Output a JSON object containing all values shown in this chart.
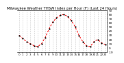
{
  "title": "Milwaukee Weather THSW Index per Hour (F) (Last 24 Hours)",
  "hours": [
    0,
    1,
    2,
    3,
    4,
    5,
    6,
    7,
    8,
    9,
    10,
    11,
    12,
    13,
    14,
    15,
    16,
    17,
    18,
    19,
    20,
    21,
    22,
    23
  ],
  "values": [
    30,
    22,
    15,
    10,
    5,
    3,
    10,
    25,
    45,
    62,
    72,
    78,
    80,
    75,
    65,
    50,
    30,
    15,
    5,
    3,
    15,
    20,
    12,
    8
  ],
  "line_color": "#ff0000",
  "marker_color": "#000000",
  "bg_color": "#ffffff",
  "grid_color": "#808080",
  "ylim": [
    -10,
    90
  ],
  "yticks": [
    -10,
    0,
    10,
    20,
    30,
    40,
    50,
    60,
    70,
    80,
    90
  ],
  "title_fontsize": 3.8,
  "tick_fontsize": 3.0
}
